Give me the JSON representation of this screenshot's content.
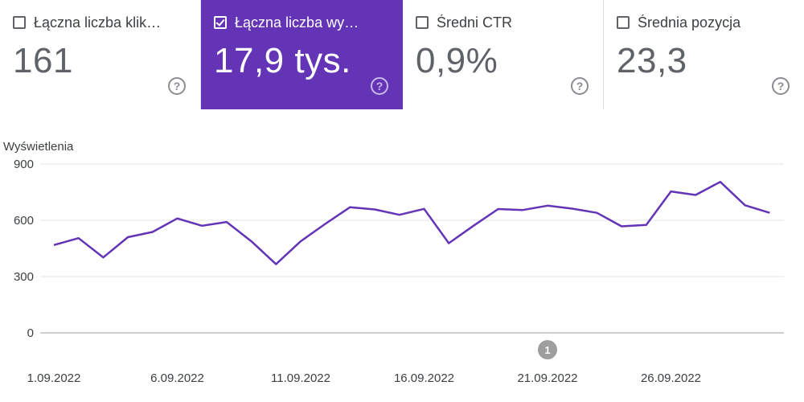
{
  "metrics": [
    {
      "label": "Łączna liczba klik…",
      "value": "161",
      "selected": false
    },
    {
      "label": "Łączna liczba wy…",
      "value": "17,9 tys.",
      "selected": true
    },
    {
      "label": "Średni CTR",
      "value": "0,9%",
      "selected": false
    },
    {
      "label": "Średnia pozycja",
      "value": "23,3",
      "selected": false
    }
  ],
  "help_glyph": "?",
  "chart_data": {
    "type": "line",
    "ylabel": "Wyświetlenia",
    "ylim": [
      0,
      900
    ],
    "yticks": [
      "900",
      "600",
      "300",
      "0"
    ],
    "xtick_labels": [
      "1.09.2022",
      "6.09.2022",
      "11.09.2022",
      "16.09.2022",
      "21.09.2022",
      "26.09.2022"
    ],
    "x": [
      "1.09",
      "2.09",
      "3.09",
      "4.09",
      "5.09",
      "6.09",
      "7.09",
      "8.09",
      "9.09",
      "10.09",
      "11.09",
      "12.09",
      "13.09",
      "14.09",
      "15.09",
      "16.09",
      "17.09",
      "18.09",
      "19.09",
      "20.09",
      "21.09",
      "22.09",
      "23.09",
      "24.09",
      "25.09",
      "26.09",
      "27.09",
      "28.09",
      "29.09",
      "30.09"
    ],
    "series": [
      {
        "color": "#6434b6",
        "values": [
          468,
          505,
          402,
          510,
          538,
          610,
          571,
          591,
          488,
          366,
          488,
          581,
          670,
          658,
          629,
          661,
          478,
          571,
          660,
          655,
          678,
          662,
          640,
          568,
          575,
          754,
          735,
          805,
          680,
          640
        ]
      }
    ],
    "annotations": [
      {
        "label": "1",
        "x": "21.09"
      }
    ],
    "grid": true
  }
}
